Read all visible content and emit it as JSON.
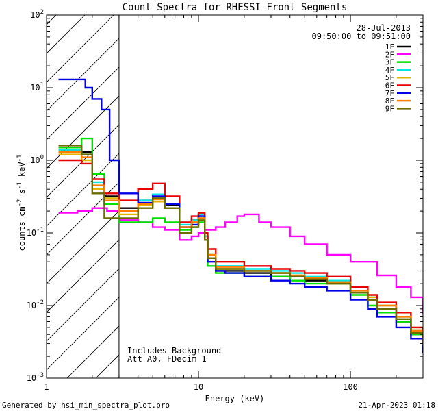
{
  "chart_data": {
    "type": "line",
    "title": "Count Spectra for RHESSI Front Segments",
    "xlabel": "Energy (keV)",
    "ylabel_parts": [
      "counts cm",
      "-2",
      " s",
      "-1",
      " keV",
      "-1"
    ],
    "x_scale": "log",
    "y_scale": "log",
    "xlim": [
      1,
      300
    ],
    "ylim": [
      0.001,
      100
    ],
    "x_tick_labels": [
      {
        "value": 1,
        "label": "1"
      },
      {
        "value": 10,
        "label": "10"
      },
      {
        "value": 100,
        "label": "100"
      }
    ],
    "y_tick_labels": [
      {
        "value": 0.001,
        "base": "10",
        "exp": "-3"
      },
      {
        "value": 0.01,
        "base": "10",
        "exp": "-2"
      },
      {
        "value": 0.1,
        "base": "10",
        "exp": "-1"
      },
      {
        "value": 1,
        "base": "10",
        "exp": "0"
      },
      {
        "value": 10,
        "base": "10",
        "exp": "1"
      },
      {
        "value": 100,
        "base": "10",
        "exp": "2"
      }
    ],
    "hatched_region_x": [
      1,
      3
    ],
    "date": "28-Jul-2013",
    "time_range": "09:50:00 to 09:51:00",
    "notes": [
      "Includes Background",
      "Att A0, FDecim 1"
    ],
    "series": [
      {
        "name": "1F",
        "color": "#000000",
        "points": [
          [
            1.25,
            1.4
          ],
          [
            1.7,
            1.3
          ],
          [
            2.0,
            0.45
          ],
          [
            2.4,
            0.32
          ],
          [
            3.0,
            0.22
          ],
          [
            4.0,
            0.28
          ],
          [
            5.0,
            0.3
          ],
          [
            6.0,
            0.24
          ],
          [
            7.5,
            0.12
          ],
          [
            9.0,
            0.15
          ],
          [
            10,
            0.18
          ],
          [
            11,
            0.09
          ],
          [
            11.5,
            0.045
          ],
          [
            13,
            0.03
          ],
          [
            15,
            0.03
          ],
          [
            20,
            0.028
          ],
          [
            30,
            0.025
          ],
          [
            40,
            0.025
          ],
          [
            50,
            0.022
          ],
          [
            70,
            0.02
          ],
          [
            100,
            0.015
          ],
          [
            130,
            0.012
          ],
          [
            150,
            0.009
          ],
          [
            200,
            0.006
          ],
          [
            250,
            0.004
          ],
          [
            300,
            0.0028
          ]
        ]
      },
      {
        "name": "2F",
        "color": "#ff00ff",
        "points": [
          [
            1.25,
            0.19
          ],
          [
            1.6,
            0.2
          ],
          [
            2.0,
            0.22
          ],
          [
            2.5,
            0.2
          ],
          [
            3.0,
            0.15
          ],
          [
            4.0,
            0.14
          ],
          [
            5.0,
            0.12
          ],
          [
            6.0,
            0.11
          ],
          [
            7.5,
            0.08
          ],
          [
            9.0,
            0.09
          ],
          [
            10,
            0.1
          ],
          [
            11,
            0.11
          ],
          [
            13,
            0.12
          ],
          [
            15,
            0.14
          ],
          [
            18,
            0.17
          ],
          [
            20,
            0.18
          ],
          [
            25,
            0.14
          ],
          [
            30,
            0.12
          ],
          [
            40,
            0.09
          ],
          [
            50,
            0.07
          ],
          [
            70,
            0.05
          ],
          [
            100,
            0.04
          ],
          [
            150,
            0.026
          ],
          [
            200,
            0.018
          ],
          [
            250,
            0.013
          ],
          [
            300,
            0.0075
          ]
        ]
      },
      {
        "name": "3F",
        "color": "#00e000",
        "points": [
          [
            1.25,
            1.5
          ],
          [
            1.7,
            2.0
          ],
          [
            2.0,
            0.65
          ],
          [
            2.4,
            0.25
          ],
          [
            3.0,
            0.14
          ],
          [
            4.0,
            0.14
          ],
          [
            5.0,
            0.16
          ],
          [
            6.0,
            0.14
          ],
          [
            7.5,
            0.11
          ],
          [
            9.0,
            0.12
          ],
          [
            10,
            0.14
          ],
          [
            11,
            0.08
          ],
          [
            11.5,
            0.035
          ],
          [
            13,
            0.028
          ],
          [
            15,
            0.028
          ],
          [
            20,
            0.025
          ],
          [
            30,
            0.025
          ],
          [
            40,
            0.022
          ],
          [
            50,
            0.02
          ],
          [
            70,
            0.02
          ],
          [
            100,
            0.014
          ],
          [
            130,
            0.01
          ],
          [
            150,
            0.008
          ],
          [
            200,
            0.006
          ],
          [
            250,
            0.004
          ],
          [
            300,
            0.003
          ]
        ]
      },
      {
        "name": "4F",
        "color": "#00e6e6",
        "points": [
          [
            1.25,
            1.4
          ],
          [
            1.7,
            1.2
          ],
          [
            2.0,
            0.5
          ],
          [
            2.4,
            0.3
          ],
          [
            3.0,
            0.2
          ],
          [
            4.0,
            0.28
          ],
          [
            5.0,
            0.34
          ],
          [
            6.0,
            0.25
          ],
          [
            7.5,
            0.13
          ],
          [
            9.0,
            0.15
          ],
          [
            10,
            0.18
          ],
          [
            11,
            0.09
          ],
          [
            11.5,
            0.05
          ],
          [
            13,
            0.035
          ],
          [
            15,
            0.035
          ],
          [
            20,
            0.032
          ],
          [
            30,
            0.03
          ],
          [
            40,
            0.028
          ],
          [
            50,
            0.025
          ],
          [
            70,
            0.022
          ],
          [
            100,
            0.016
          ],
          [
            130,
            0.013
          ],
          [
            150,
            0.01
          ],
          [
            200,
            0.007
          ],
          [
            250,
            0.0045
          ],
          [
            300,
            0.003
          ]
        ]
      },
      {
        "name": "5F",
        "color": "#e6b400",
        "points": [
          [
            1.25,
            1.2
          ],
          [
            1.7,
            1.0
          ],
          [
            2.0,
            0.4
          ],
          [
            2.4,
            0.3
          ],
          [
            3.0,
            0.18
          ],
          [
            4.0,
            0.24
          ],
          [
            5.0,
            0.27
          ],
          [
            6.0,
            0.22
          ],
          [
            7.5,
            0.12
          ],
          [
            9.0,
            0.14
          ],
          [
            10,
            0.16
          ],
          [
            11,
            0.08
          ],
          [
            11.5,
            0.045
          ],
          [
            13,
            0.032
          ],
          [
            15,
            0.032
          ],
          [
            20,
            0.03
          ],
          [
            30,
            0.028
          ],
          [
            40,
            0.026
          ],
          [
            50,
            0.024
          ],
          [
            70,
            0.02
          ],
          [
            100,
            0.016
          ],
          [
            130,
            0.013
          ],
          [
            150,
            0.01
          ],
          [
            200,
            0.007
          ],
          [
            250,
            0.005
          ],
          [
            300,
            0.0032
          ]
        ]
      },
      {
        "name": "6F",
        "color": "#e60000",
        "points": [
          [
            1.25,
            1.0
          ],
          [
            1.7,
            0.9
          ],
          [
            2.0,
            0.55
          ],
          [
            2.4,
            0.35
          ],
          [
            3.0,
            0.28
          ],
          [
            4.0,
            0.4
          ],
          [
            5.0,
            0.48
          ],
          [
            6.0,
            0.32
          ],
          [
            7.5,
            0.14
          ],
          [
            9.0,
            0.17
          ],
          [
            10,
            0.19
          ],
          [
            11,
            0.1
          ],
          [
            11.5,
            0.06
          ],
          [
            13,
            0.04
          ],
          [
            15,
            0.04
          ],
          [
            20,
            0.035
          ],
          [
            30,
            0.032
          ],
          [
            40,
            0.03
          ],
          [
            50,
            0.028
          ],
          [
            70,
            0.025
          ],
          [
            100,
            0.018
          ],
          [
            130,
            0.014
          ],
          [
            150,
            0.011
          ],
          [
            200,
            0.008
          ],
          [
            250,
            0.005
          ],
          [
            300,
            0.0032
          ]
        ]
      },
      {
        "name": "7F",
        "color": "#0000e6",
        "points": [
          [
            1.25,
            13
          ],
          [
            1.6,
            13
          ],
          [
            1.8,
            10
          ],
          [
            2.0,
            7.0
          ],
          [
            2.3,
            5.0
          ],
          [
            2.6,
            1.0
          ],
          [
            3.0,
            0.35
          ],
          [
            4.0,
            0.26
          ],
          [
            5.0,
            0.32
          ],
          [
            6.0,
            0.25
          ],
          [
            7.5,
            0.12
          ],
          [
            9.0,
            0.13
          ],
          [
            10,
            0.17
          ],
          [
            11,
            0.08
          ],
          [
            11.5,
            0.04
          ],
          [
            13,
            0.03
          ],
          [
            15,
            0.028
          ],
          [
            20,
            0.025
          ],
          [
            30,
            0.022
          ],
          [
            40,
            0.02
          ],
          [
            50,
            0.018
          ],
          [
            70,
            0.016
          ],
          [
            100,
            0.012
          ],
          [
            130,
            0.009
          ],
          [
            150,
            0.007
          ],
          [
            200,
            0.005
          ],
          [
            250,
            0.0035
          ],
          [
            300,
            0.0022
          ]
        ]
      },
      {
        "name": "8F",
        "color": "#ff7f00",
        "points": [
          [
            1.25,
            1.3
          ],
          [
            1.7,
            1.1
          ],
          [
            2.0,
            0.45
          ],
          [
            2.4,
            0.28
          ],
          [
            3.0,
            0.2
          ],
          [
            4.0,
            0.25
          ],
          [
            5.0,
            0.29
          ],
          [
            6.0,
            0.22
          ],
          [
            7.5,
            0.12
          ],
          [
            9.0,
            0.14
          ],
          [
            10,
            0.16
          ],
          [
            11,
            0.08
          ],
          [
            11.5,
            0.05
          ],
          [
            13,
            0.034
          ],
          [
            15,
            0.034
          ],
          [
            20,
            0.03
          ],
          [
            30,
            0.028
          ],
          [
            40,
            0.026
          ],
          [
            50,
            0.024
          ],
          [
            70,
            0.021
          ],
          [
            100,
            0.016
          ],
          [
            130,
            0.012
          ],
          [
            150,
            0.01
          ],
          [
            200,
            0.007
          ],
          [
            250,
            0.0045
          ],
          [
            300,
            0.003
          ]
        ]
      },
      {
        "name": "9F",
        "color": "#6b6b00",
        "points": [
          [
            1.25,
            1.6
          ],
          [
            1.7,
            1.2
          ],
          [
            2.0,
            0.35
          ],
          [
            2.4,
            0.16
          ],
          [
            3.0,
            0.16
          ],
          [
            4.0,
            0.22
          ],
          [
            5.0,
            0.3
          ],
          [
            6.0,
            0.22
          ],
          [
            7.5,
            0.1
          ],
          [
            9.0,
            0.12
          ],
          [
            10,
            0.15
          ],
          [
            11,
            0.08
          ],
          [
            11.5,
            0.045
          ],
          [
            13,
            0.032
          ],
          [
            15,
            0.032
          ],
          [
            20,
            0.03
          ],
          [
            30,
            0.028
          ],
          [
            40,
            0.025
          ],
          [
            50,
            0.023
          ],
          [
            70,
            0.02
          ],
          [
            100,
            0.015
          ],
          [
            130,
            0.012
          ],
          [
            150,
            0.009
          ],
          [
            200,
            0.0065
          ],
          [
            250,
            0.0042
          ],
          [
            300,
            0.0028
          ]
        ]
      }
    ]
  },
  "footer": {
    "generated_by": "Generated by hsi_min_spectra_plot.pro",
    "timestamp": "21-Apr-2023 01:18"
  }
}
